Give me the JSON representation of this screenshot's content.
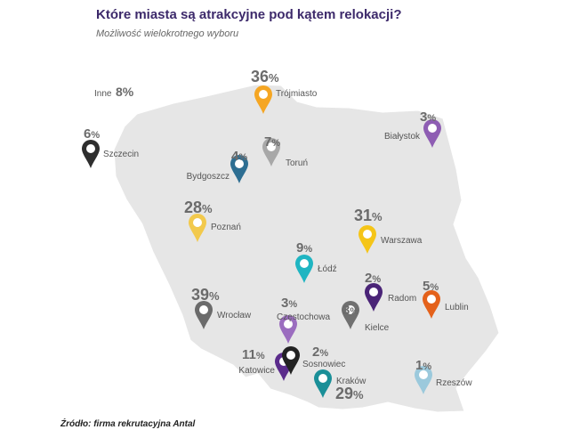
{
  "title": "Które miasta są atrakcyjne pod kątem relokacji?",
  "subtitle": "Możliwość wielokrotnego wyboru",
  "source": "Źródło: firma rekrutacyjna Antal",
  "other": {
    "label": "Inne",
    "value": "8%"
  },
  "cities": [
    {
      "name": "Trójmiasto",
      "value": "36",
      "color": "#f5a623"
    },
    {
      "name": "Szczecin",
      "value": "6",
      "color": "#2e2e2e"
    },
    {
      "name": "Białystok",
      "value": "3",
      "color": "#8e5db3"
    },
    {
      "name": "Bydgoszcz",
      "value": "4",
      "color": "#2d6e92"
    },
    {
      "name": "Toruń",
      "value": "7",
      "color": "#a8a8a8"
    },
    {
      "name": "Poznań",
      "value": "28",
      "color": "#f2c94c"
    },
    {
      "name": "Warszawa",
      "value": "31",
      "color": "#f5c518"
    },
    {
      "name": "Łódź",
      "value": "9",
      "color": "#1fb5c2"
    },
    {
      "name": "Radom",
      "value": "2",
      "color": "#4a2477"
    },
    {
      "name": "Lublin",
      "value": "5",
      "color": "#e4611a"
    },
    {
      "name": "Wrocław",
      "value": "39",
      "color": "#6b6b6b"
    },
    {
      "name": "Częstochowa",
      "value": "3",
      "color": "#9b6dbf"
    },
    {
      "name": "Kielce",
      "value": "3",
      "color": "#707070"
    },
    {
      "name": "Katowice",
      "value": "11",
      "color": "#5b2c8c"
    },
    {
      "name": "Sosnowiec",
      "value": "2",
      "color": "#222222"
    },
    {
      "name": "Kraków",
      "value": "29",
      "color": "#1a8f98"
    },
    {
      "name": "Rzeszów",
      "value": "1",
      "color": "#9bc9dc"
    }
  ]
}
